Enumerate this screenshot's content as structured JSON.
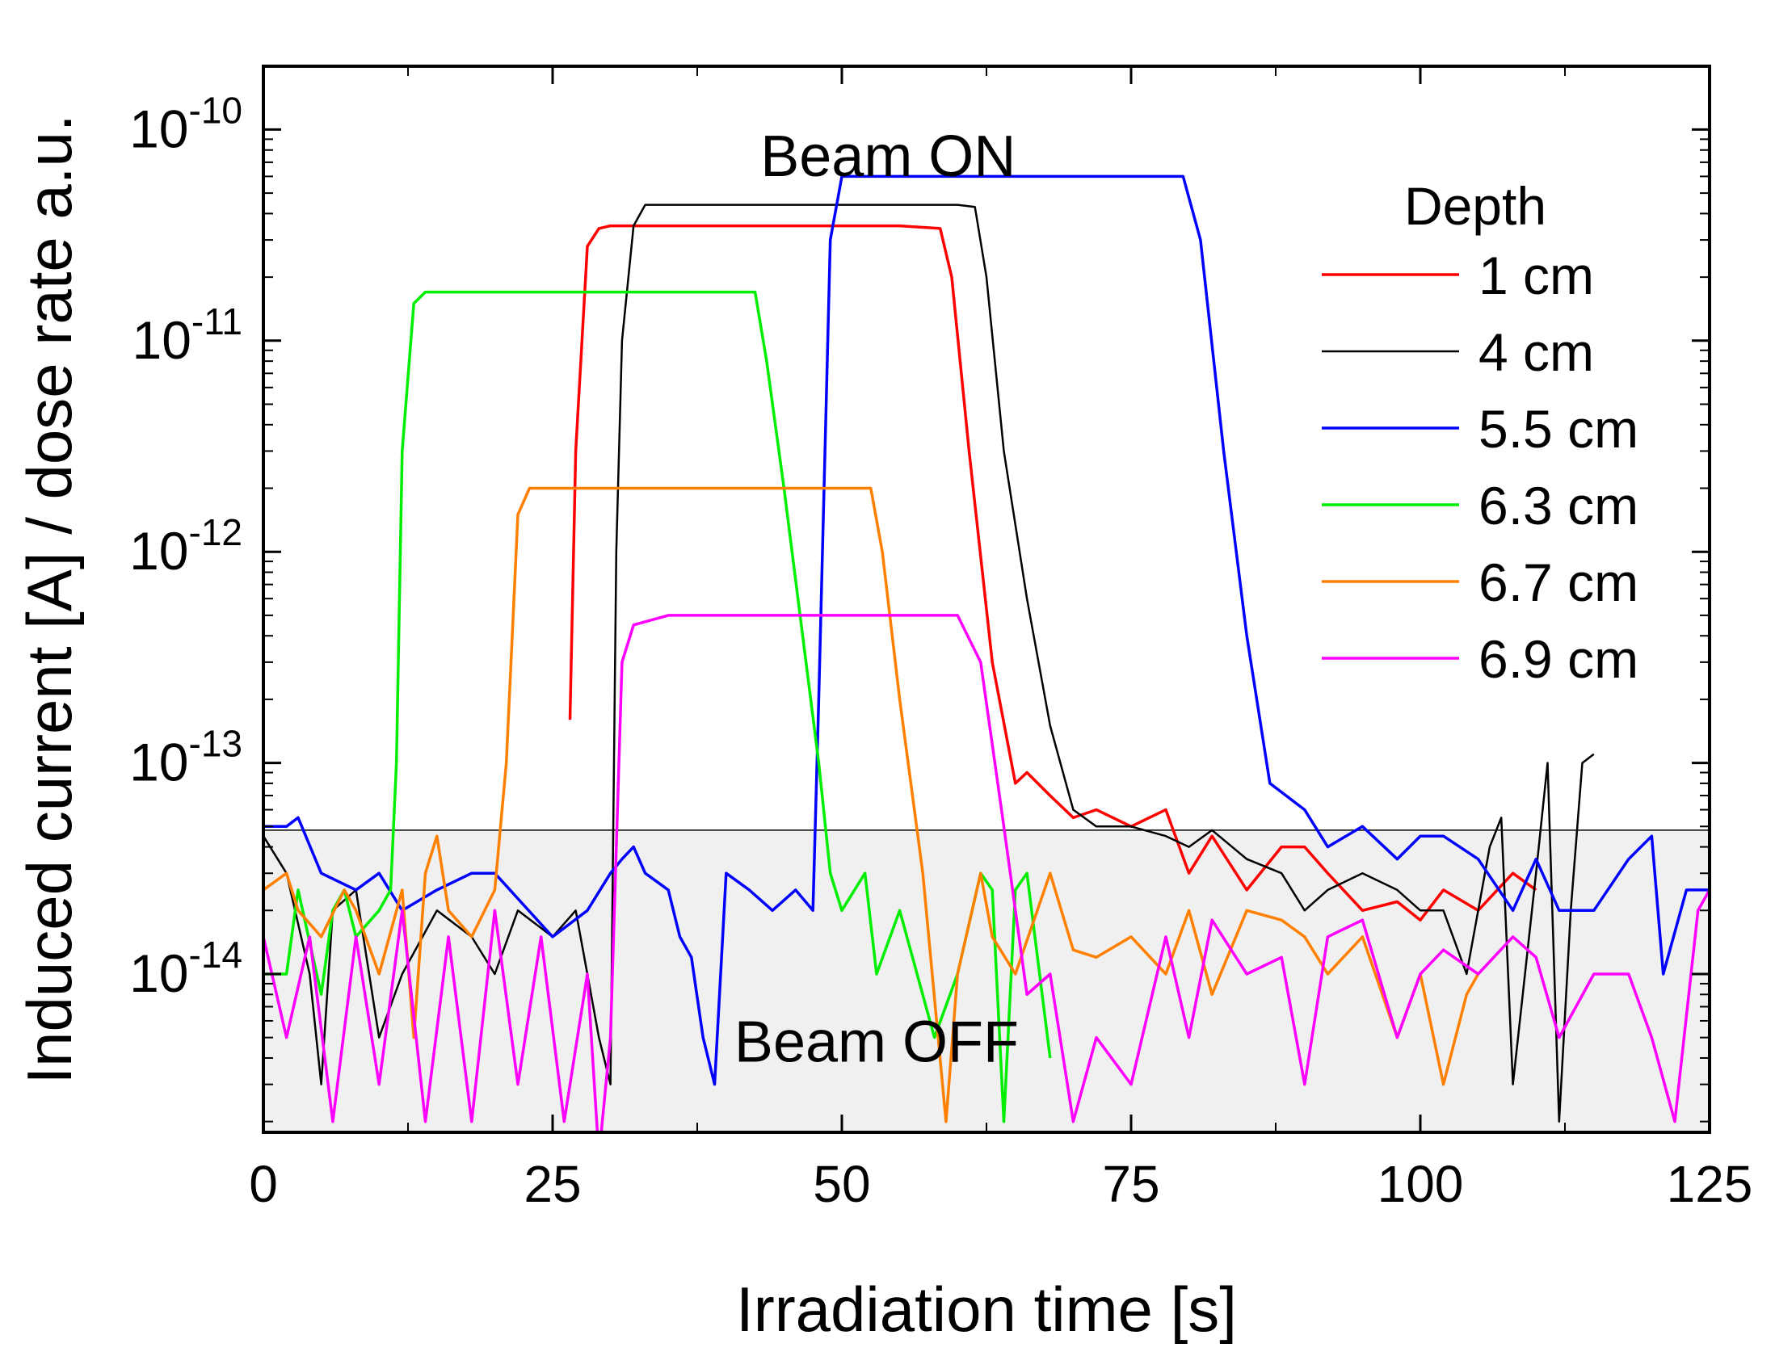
{
  "chart_data": {
    "type": "line",
    "xlabel": "Irradiation time [s]",
    "ylabel": "Induced current [A] / dose rate a.u.",
    "xlim": [
      0,
      125
    ],
    "ylim_log10": [
      -14.75,
      -9.7
    ],
    "yscale": "log",
    "x_ticks": [
      0,
      25,
      50,
      75,
      100,
      125
    ],
    "x_tick_labels": [
      "0",
      "25",
      "50",
      "75",
      "100",
      "125"
    ],
    "y_ticks_log10": [
      -14,
      -13,
      -12,
      -11,
      -10
    ],
    "y_tick_labels": [
      {
        "base": "10",
        "exp": "-14"
      },
      {
        "base": "10",
        "exp": "-13"
      },
      {
        "base": "10",
        "exp": "-12"
      },
      {
        "base": "10",
        "exp": "-11"
      },
      {
        "base": "10",
        "exp": "-10"
      }
    ],
    "grid": false,
    "noise_threshold": 4.8e-14,
    "annotations": [
      {
        "text": "Beam ON",
        "x": 54,
        "y": 7.5e-11
      },
      {
        "text": "Beam OFF",
        "x": 53,
        "y": 4.8e-15
      }
    ],
    "legend": {
      "title": "Depth",
      "placement": "top-right"
    },
    "series": [
      {
        "name": "1 cm",
        "color": "#ff0000",
        "x": [
          26.5,
          27,
          28,
          29,
          30,
          35,
          40,
          45,
          50,
          55,
          58.5,
          59.5,
          61,
          63,
          65,
          66,
          68,
          70,
          72,
          75,
          78,
          80,
          82,
          85,
          88,
          90,
          92,
          95,
          98,
          100,
          102,
          105,
          108,
          110
        ],
        "y": [
          1.6e-13,
          3e-12,
          2.8e-11,
          3.4e-11,
          3.5e-11,
          3.5e-11,
          3.5e-11,
          3.5e-11,
          3.5e-11,
          3.5e-11,
          3.4e-11,
          2e-11,
          3e-12,
          3e-13,
          8e-14,
          9e-14,
          7e-14,
          5.5e-14,
          6e-14,
          5e-14,
          6e-14,
          3e-14,
          4.5e-14,
          2.5e-14,
          4e-14,
          4e-14,
          3e-14,
          2e-14,
          2.2e-14,
          1.8e-14,
          2.5e-14,
          2e-14,
          3e-14,
          2.5e-14
        ]
      },
      {
        "name": "4 cm",
        "color": "#000000",
        "x": [
          0,
          2,
          4,
          5,
          6,
          8,
          10,
          12,
          15,
          18,
          20,
          22,
          25,
          27,
          28,
          29,
          30,
          30.5,
          31,
          32,
          33,
          35,
          40,
          45,
          50,
          55,
          60,
          61.5,
          62.5,
          64,
          66,
          68,
          70,
          72,
          75,
          78,
          80,
          82,
          85,
          88,
          90,
          92,
          95,
          98,
          100,
          102,
          104,
          106,
          107,
          108,
          110,
          111,
          112,
          113,
          114,
          115
        ],
        "y": [
          4.5e-14,
          3e-14,
          1e-14,
          3e-15,
          2e-14,
          2.5e-14,
          5e-15,
          1e-14,
          2e-14,
          1.5e-14,
          1e-14,
          2e-14,
          1.5e-14,
          2e-14,
          1e-14,
          5e-15,
          3e-15,
          1e-12,
          1e-11,
          3.5e-11,
          4.4e-11,
          4.4e-11,
          4.4e-11,
          4.4e-11,
          4.4e-11,
          4.4e-11,
          4.4e-11,
          4.3e-11,
          2e-11,
          3e-12,
          6e-13,
          1.5e-13,
          6e-14,
          5e-14,
          5e-14,
          4.5e-14,
          4e-14,
          4.8e-14,
          3.5e-14,
          3e-14,
          2e-14,
          2.5e-14,
          3e-14,
          2.5e-14,
          2e-14,
          2e-14,
          1e-14,
          4e-14,
          5.5e-14,
          3e-15,
          3e-14,
          1e-13,
          2e-15,
          2e-14,
          1e-13,
          1.1e-13
        ]
      },
      {
        "name": "5.5 cm",
        "color": "#0000ff",
        "x": [
          0,
          2,
          3,
          5,
          8,
          10,
          12,
          15,
          18,
          20,
          25,
          28,
          30,
          31,
          32,
          33,
          35,
          36,
          37,
          38,
          39,
          40,
          42,
          44,
          46,
          47.5,
          48,
          49,
          50,
          55,
          60,
          65,
          70,
          75,
          79.5,
          81,
          83,
          85,
          87,
          90,
          92,
          95,
          98,
          100,
          102,
          105,
          108,
          110,
          112,
          115,
          118,
          120,
          121,
          123,
          125
        ],
        "y": [
          5e-14,
          5e-14,
          5.5e-14,
          3e-14,
          2.5e-14,
          3e-14,
          2e-14,
          2.5e-14,
          3e-14,
          3e-14,
          1.5e-14,
          2e-14,
          3e-14,
          3.5e-14,
          4e-14,
          3e-14,
          2.5e-14,
          1.5e-14,
          1.2e-14,
          5e-15,
          3e-15,
          3e-14,
          2.5e-14,
          2e-14,
          2.5e-14,
          2e-14,
          2e-13,
          3e-11,
          6e-11,
          6e-11,
          6e-11,
          6e-11,
          6e-11,
          6e-11,
          6e-11,
          3e-11,
          3e-12,
          4e-13,
          8e-14,
          6e-14,
          4e-14,
          5e-14,
          3.5e-14,
          4.5e-14,
          4.5e-14,
          3.5e-14,
          2e-14,
          3.5e-14,
          2e-14,
          2e-14,
          3.5e-14,
          4.5e-14,
          1e-14,
          2.5e-14,
          2.5e-14
        ]
      },
      {
        "name": "6.3 cm",
        "color": "#00ee00",
        "x": [
          0,
          2,
          3,
          5,
          6,
          7,
          8,
          10,
          11,
          11.5,
          12,
          13,
          14,
          15,
          20,
          25,
          30,
          35,
          40,
          42.5,
          43.5,
          45,
          48,
          49,
          50,
          52,
          53,
          55,
          58,
          60,
          62,
          63,
          64,
          65,
          66,
          68
        ],
        "y": [
          1e-14,
          1e-14,
          2.5e-14,
          8e-15,
          2e-14,
          2.5e-14,
          1.5e-14,
          2e-14,
          2.5e-14,
          1e-13,
          3e-12,
          1.5e-11,
          1.7e-11,
          1.7e-11,
          1.7e-11,
          1.7e-11,
          1.7e-11,
          1.7e-11,
          1.7e-11,
          1.7e-11,
          8e-12,
          2e-12,
          1e-13,
          3e-14,
          2e-14,
          3e-14,
          1e-14,
          2e-14,
          5e-15,
          1e-14,
          3e-14,
          2.5e-14,
          2e-15,
          2.5e-14,
          3e-14,
          4e-15
        ]
      },
      {
        "name": "6.7 cm",
        "color": "#ff8000",
        "x": [
          0,
          2,
          3,
          5,
          7,
          8,
          10,
          12,
          13,
          14,
          15,
          16,
          18,
          20,
          21,
          22,
          23,
          25,
          30,
          35,
          40,
          45,
          50,
          52.5,
          53.5,
          55,
          57,
          59,
          60,
          62,
          63,
          65,
          68,
          70,
          72,
          75,
          78,
          80,
          82,
          85,
          88,
          90,
          92,
          95,
          98,
          100,
          102,
          104,
          105
        ],
        "y": [
          2.5e-14,
          3e-14,
          2e-14,
          1.5e-14,
          2.5e-14,
          2e-14,
          1e-14,
          2.5e-14,
          5e-15,
          3e-14,
          4.5e-14,
          2e-14,
          1.5e-14,
          2.5e-14,
          1e-13,
          1.5e-12,
          2e-12,
          2e-12,
          2e-12,
          2e-12,
          2e-12,
          2e-12,
          2e-12,
          2e-12,
          1e-12,
          2e-13,
          3e-14,
          2e-15,
          1e-14,
          3e-14,
          1.5e-14,
          1e-14,
          3e-14,
          1.3e-14,
          1.2e-14,
          1.5e-14,
          1e-14,
          2e-14,
          8e-15,
          2e-14,
          1.8e-14,
          1.5e-14,
          1e-14,
          1.5e-14,
          5e-15,
          1e-14,
          3e-15,
          8e-15,
          1e-14
        ]
      },
      {
        "name": "6.9 cm",
        "color": "#ff00ff",
        "x": [
          0,
          2,
          4,
          6,
          8,
          10,
          12,
          14,
          16,
          18,
          20,
          22,
          24,
          26,
          28,
          29,
          30,
          31,
          32,
          35,
          40,
          45,
          50,
          55,
          60,
          62,
          64,
          66,
          68,
          70,
          72,
          75,
          78,
          80,
          82,
          85,
          88,
          90,
          92,
          95,
          98,
          100,
          102,
          105,
          108,
          110,
          112,
          115,
          118,
          120,
          122,
          124,
          125
        ],
        "y": [
          1.5e-14,
          5e-15,
          1.5e-14,
          2e-15,
          1.5e-14,
          3e-15,
          2e-14,
          2e-15,
          1.5e-14,
          2e-15,
          2e-14,
          3e-15,
          1.5e-14,
          2e-15,
          1e-14,
          1e-15,
          5e-15,
          3e-13,
          4.5e-13,
          5e-13,
          5e-13,
          5e-13,
          5e-13,
          5e-13,
          5e-13,
          3e-13,
          5e-14,
          8e-15,
          1e-14,
          2e-15,
          5e-15,
          3e-15,
          1.5e-14,
          5e-15,
          1.8e-14,
          1e-14,
          1.2e-14,
          3e-15,
          1.5e-14,
          1.8e-14,
          5e-15,
          1e-14,
          1.3e-14,
          1e-14,
          1.5e-14,
          1.2e-14,
          5e-15,
          1e-14,
          1e-14,
          5e-15,
          2e-15,
          2e-14,
          2.5e-14
        ]
      }
    ]
  }
}
